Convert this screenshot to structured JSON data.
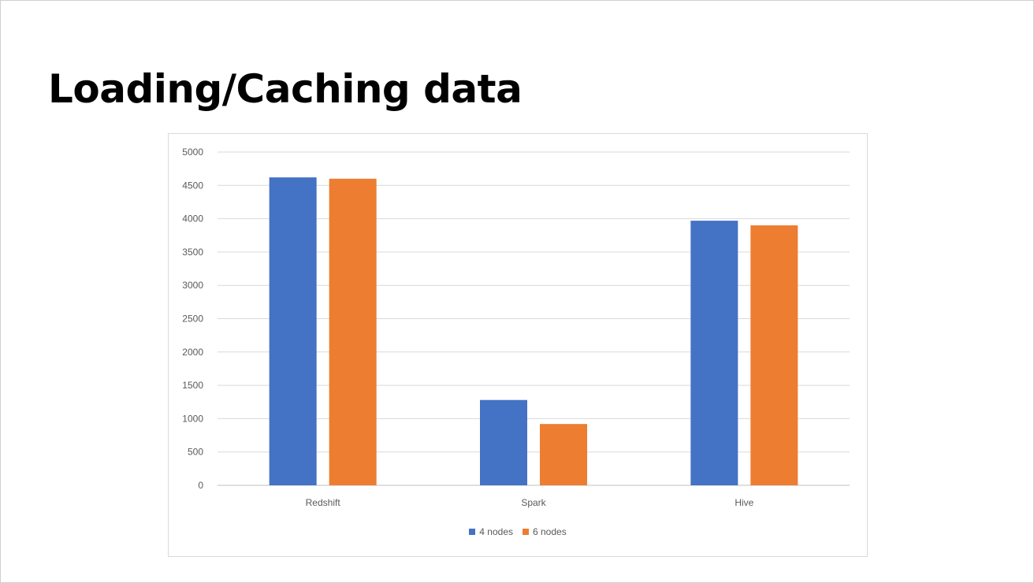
{
  "slide": {
    "title": "Loading/Caching data"
  },
  "chart_data": {
    "type": "bar",
    "categories": [
      "Redshift",
      "Spark",
      "Hive"
    ],
    "series": [
      {
        "name": "4 nodes",
        "values": [
          4620,
          1280,
          3970
        ],
        "color": "#4472C4"
      },
      {
        "name": "6 nodes",
        "values": [
          4600,
          920,
          3900
        ],
        "color": "#ED7D31"
      }
    ],
    "title": "",
    "xlabel": "",
    "ylabel": "",
    "ylim": [
      0,
      5000
    ],
    "yticks": [
      0,
      500,
      1000,
      1500,
      2000,
      2500,
      3000,
      3500,
      4000,
      4500,
      5000
    ],
    "grid": true,
    "legend": "bottom-center"
  }
}
